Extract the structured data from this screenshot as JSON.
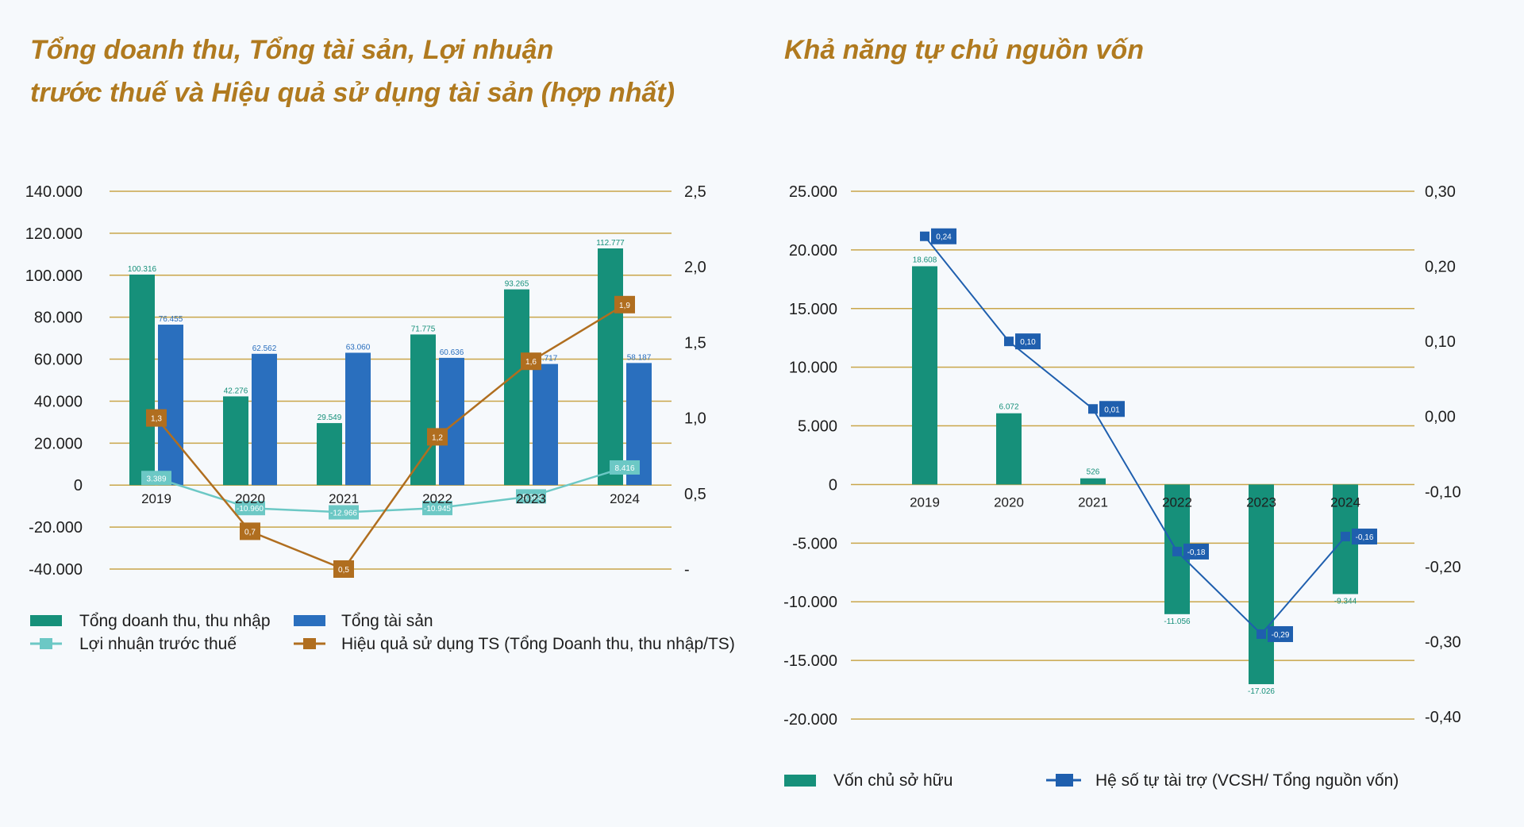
{
  "titles": {
    "left_line1": "Tổng doanh thu, Tổng tài sản, Lợi nhuận",
    "left_line2": "trước thuế và Hiệu quả sử dụng tài sản (hợp nhất)",
    "right": "Khả năng tự chủ nguồn vốn"
  },
  "colors": {
    "gridline": "#c9a64a",
    "teal": "#16907a",
    "blue": "#2a6fbe",
    "light_teal": "#6cc8c5",
    "orange_brown": "#b06e1f",
    "navy_marker": "#1f5fae",
    "title": "#b07a1f"
  },
  "chart_data": [
    {
      "type": "bar",
      "categories": [
        "2019",
        "2020",
        "2021",
        "2022",
        "2023",
        "2024"
      ],
      "ylim": [
        -40000,
        140000
      ],
      "y_ticks": [
        "140.000",
        "120.000",
        "100.000",
        "80.000",
        "60.000",
        "40.000",
        "20.000",
        "0",
        "-20.000",
        "-40.000"
      ],
      "y2lim": [
        0.5,
        2.5
      ],
      "y2_ticks": [
        "2,5",
        "2,0",
        "1,5",
        "1,0",
        "0,5",
        "-"
      ],
      "grid": true,
      "legend_position": "bottom",
      "series": [
        {
          "name": "Tổng doanh thu, thu nhập",
          "kind": "bar",
          "color": "#16907a",
          "values": [
            100316,
            42276,
            29549,
            71775,
            93265,
            112777
          ],
          "labels": [
            "100.316",
            "42.276",
            "29.549",
            "71.775",
            "93.265",
            "112.777"
          ]
        },
        {
          "name": "Tổng tài sản",
          "kind": "bar",
          "color": "#2a6fbe",
          "values": [
            76455,
            62562,
            63060,
            60636,
            57717,
            58187
          ],
          "labels": [
            "76.455",
            "62.562",
            "63.060",
            "60.636",
            "57.717",
            "58.187"
          ]
        },
        {
          "name": "Lợi nhuận trước thuế",
          "kind": "line",
          "axis": "left",
          "color": "#6cc8c5",
          "values": [
            3389,
            -10960,
            -12966,
            -10945,
            -5363,
            8416
          ],
          "labels": [
            "3.389",
            "-10.960",
            "-12.966",
            "-10.945",
            "-5.363",
            "8.416"
          ]
        },
        {
          "name": "Hiệu quả sử dụng TS (Tổng Doanh thu, thu nhập/TS)",
          "kind": "line",
          "axis": "right",
          "color": "#b06e1f",
          "values": [
            1.3,
            0.7,
            0.5,
            1.2,
            1.6,
            1.9
          ],
          "labels": [
            "1,3",
            "0,7",
            "0,5",
            "1,2",
            "1,6",
            "1,9"
          ]
        }
      ]
    },
    {
      "type": "bar",
      "categories": [
        "2019",
        "2020",
        "2021",
        "2022",
        "2023",
        "2024"
      ],
      "ylim": [
        -20000,
        25000
      ],
      "y_ticks": [
        "25.000",
        "20.000",
        "15.000",
        "10.000",
        "5.000",
        "0",
        "-5.000",
        "-10.000",
        "-15.000",
        "-20.000"
      ],
      "y2lim": [
        -0.4,
        0.3
      ],
      "y2_ticks": [
        "0,30",
        "0,20",
        "0,10",
        "0,00",
        "-0,10",
        "-0,20",
        "-0,30",
        "-0,40"
      ],
      "grid": true,
      "legend_position": "bottom",
      "series": [
        {
          "name": "Vốn chủ sở hữu",
          "kind": "bar",
          "color": "#16907a",
          "values": [
            18608,
            6072,
            526,
            -11056,
            -17026,
            -9344
          ],
          "labels": [
            "18.608",
            "6.072",
            "526",
            "-11.056",
            "-17.026",
            "-9.344"
          ]
        },
        {
          "name": "Hệ số tự tài trợ (VCSH/ Tổng nguồn vốn)",
          "kind": "line",
          "axis": "right",
          "color": "#1f5fae",
          "values": [
            0.24,
            0.1,
            0.01,
            -0.18,
            -0.29,
            -0.16
          ],
          "labels": [
            "0,24",
            "0,10",
            "0,01",
            "-0,18",
            "-0,29",
            "-0,16"
          ]
        }
      ]
    }
  ]
}
